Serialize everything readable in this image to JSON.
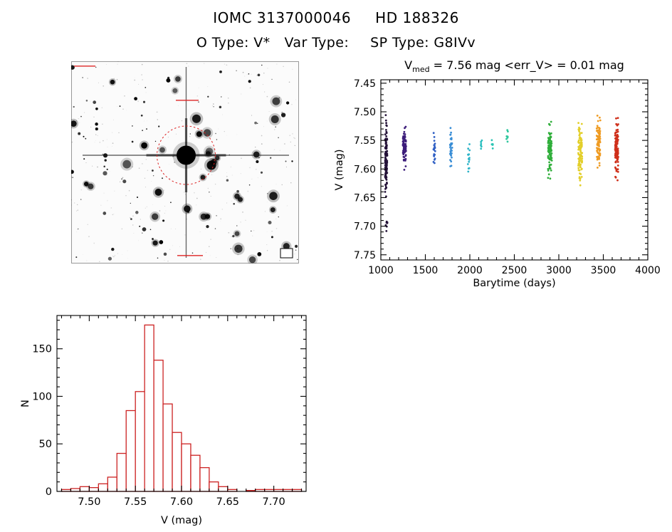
{
  "header": {
    "catalog_id": "IOMC 3137000046",
    "star_name": "HD 188326",
    "object_type": "O Type: V*",
    "variability_type": "Var Type:",
    "spectral_type": "SP Type: G8IVv"
  },
  "finder": {
    "description": "Grayscale optical finder chart with target star circled",
    "target_circle_color": "#dd2222"
  },
  "chart_data": [
    {
      "id": "lightcurve",
      "type": "scatter",
      "title": {
        "main": "V",
        "sub": "med",
        "rest": " = 7.56 mag <err_V> = 0.01 mag"
      },
      "v_med_mag": 7.56,
      "err_v_mag": 0.01,
      "xlabel": "Barytime (days)",
      "ylabel": "V (mag)",
      "xlim": [
        1000,
        4000
      ],
      "ylim": [
        7.444,
        7.759
      ],
      "y_inverted": true,
      "xticks": [
        1000,
        1500,
        2000,
        2500,
        3000,
        3500,
        4000
      ],
      "xtick_labels": [
        "1000",
        "1500",
        "2000",
        "2500",
        "3000",
        "3500",
        "4000"
      ],
      "x_minor": 100,
      "yticks": [
        7.45,
        7.5,
        7.55,
        7.6,
        7.65,
        7.7,
        7.75
      ],
      "ytick_labels": [
        "7.45",
        "7.50",
        "7.55",
        "7.60",
        "7.65",
        "7.70",
        "7.75"
      ],
      "y_minor": 0.01,
      "grid": false,
      "legend": false,
      "clusters": [
        {
          "x": 1060,
          "x_spread": 12,
          "y_min": 7.5,
          "y_max": 7.665,
          "n": 130,
          "color": "#241238"
        },
        {
          "x": 1063,
          "x_spread": 10,
          "y_min": 7.685,
          "y_max": 7.715,
          "n": 7,
          "color": "#241238"
        },
        {
          "x": 1265,
          "x_spread": 18,
          "y_min": 7.515,
          "y_max": 7.605,
          "n": 70,
          "color": "#3c1d7a"
        },
        {
          "x": 1600,
          "x_spread": 12,
          "y_min": 7.53,
          "y_max": 7.6,
          "n": 22,
          "color": "#2f5fc4"
        },
        {
          "x": 1790,
          "x_spread": 12,
          "y_min": 7.515,
          "y_max": 7.61,
          "n": 30,
          "color": "#3a8ed6"
        },
        {
          "x": 1990,
          "x_spread": 12,
          "y_min": 7.535,
          "y_max": 7.615,
          "n": 14,
          "color": "#2fb4c8"
        },
        {
          "x": 2130,
          "x_spread": 8,
          "y_min": 7.54,
          "y_max": 7.575,
          "n": 7,
          "color": "#2cbfc0"
        },
        {
          "x": 2255,
          "x_spread": 8,
          "y_min": 7.538,
          "y_max": 7.572,
          "n": 6,
          "color": "#2cc4b4"
        },
        {
          "x": 2420,
          "x_spread": 8,
          "y_min": 7.525,
          "y_max": 7.565,
          "n": 8,
          "color": "#30c79e"
        },
        {
          "x": 2900,
          "x_spread": 22,
          "y_min": 7.505,
          "y_max": 7.625,
          "n": 100,
          "color": "#2fae3a"
        },
        {
          "x": 3240,
          "x_spread": 22,
          "y_min": 7.5,
          "y_max": 7.64,
          "n": 100,
          "color": "#e3cf2a"
        },
        {
          "x": 3445,
          "x_spread": 22,
          "y_min": 7.49,
          "y_max": 7.625,
          "n": 90,
          "color": "#ef9b22"
        },
        {
          "x": 3650,
          "x_spread": 18,
          "y_min": 7.5,
          "y_max": 7.635,
          "n": 115,
          "color": "#cf2f1a"
        }
      ]
    },
    {
      "id": "histogram",
      "type": "bar",
      "title": null,
      "xlabel": "V (mag)",
      "ylabel": "N",
      "xlim": [
        7.465,
        7.735
      ],
      "ylim": [
        0,
        185
      ],
      "y_inverted": false,
      "xticks": [
        7.5,
        7.55,
        7.6,
        7.65,
        7.7
      ],
      "xtick_labels": [
        "7.50",
        "7.55",
        "7.60",
        "7.65",
        "7.70"
      ],
      "x_minor": 0.01,
      "yticks": [
        0,
        50,
        100,
        150
      ],
      "ytick_labels": [
        "0",
        "50",
        "100",
        "150"
      ],
      "y_minor": 10,
      "grid": false,
      "legend": false,
      "bar_color": "#cc2222",
      "bin_start": 7.47,
      "bin_width": 0.01,
      "counts": [
        2,
        3,
        5,
        4,
        8,
        15,
        40,
        85,
        105,
        175,
        138,
        92,
        62,
        50,
        38,
        25,
        10,
        5,
        2,
        0,
        1,
        2,
        2,
        2,
        2,
        2
      ]
    }
  ]
}
